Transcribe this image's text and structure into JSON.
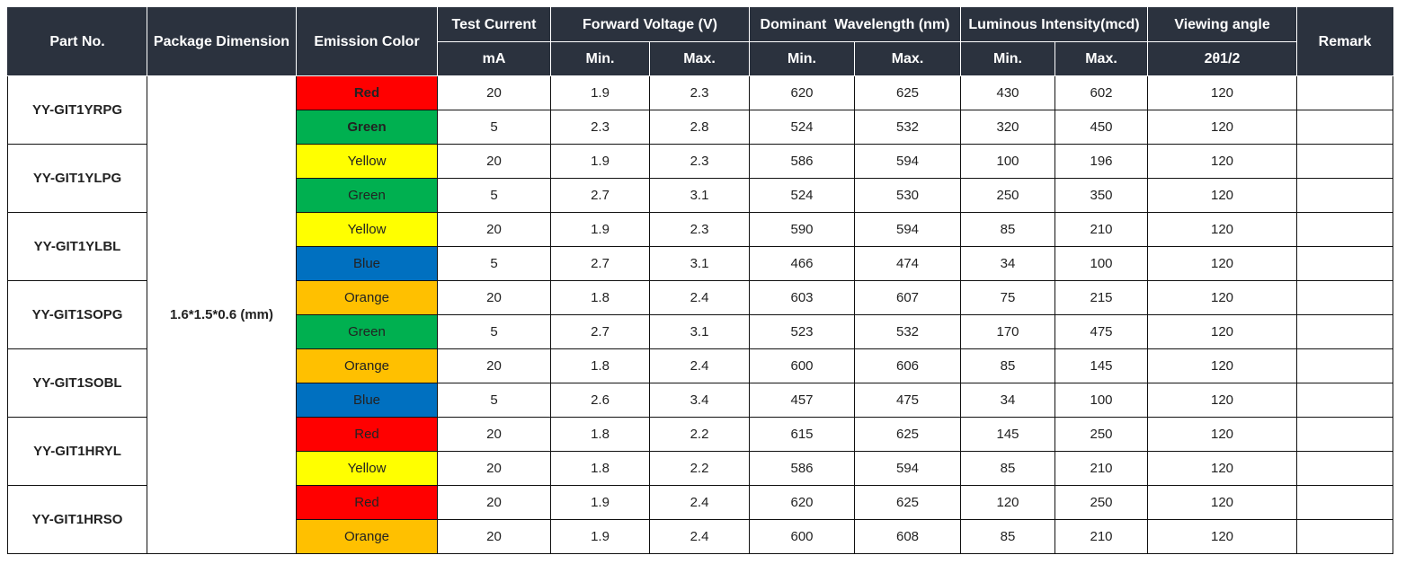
{
  "headers": {
    "part_no": "Part No.",
    "package_dimension": "Package Dimension",
    "emission_color": "Emission Color",
    "test_current": "Test Current",
    "test_current_unit": "mA",
    "forward_voltage": "Forward Voltage (V)",
    "dominant_wavelength": "Dominant  Wavelength (nm)",
    "luminous_intensity": "Luminous Intensity(mcd)",
    "viewing_angle": "Viewing angle",
    "viewing_angle_unit": "2θ1/2",
    "remark": "Remark",
    "min": "Min.",
    "max": "Max."
  },
  "package_dimension": "1.6*1.5*0.6 (mm)",
  "parts": [
    {
      "part_no": "YY-GIT1YRPG",
      "rows": [
        {
          "color": "Red",
          "bg": "#ff0000",
          "bold": true,
          "current": "20",
          "vf_min": "1.9",
          "vf_max": "2.3",
          "wl_min": "620",
          "wl_max": "625",
          "iv_min": "430",
          "iv_max": "602",
          "angle": "120",
          "remark": ""
        },
        {
          "color": "Green",
          "bg": "#00b050",
          "bold": true,
          "current": "5",
          "vf_min": "2.3",
          "vf_max": "2.8",
          "wl_min": "524",
          "wl_max": "532",
          "iv_min": "320",
          "iv_max": "450",
          "angle": "120",
          "remark": ""
        }
      ]
    },
    {
      "part_no": "YY-GIT1YLPG",
      "rows": [
        {
          "color": "Yellow",
          "bg": "#ffff00",
          "bold": false,
          "current": "20",
          "vf_min": "1.9",
          "vf_max": "2.3",
          "wl_min": "586",
          "wl_max": "594",
          "iv_min": "100",
          "iv_max": "196",
          "angle": "120",
          "remark": ""
        },
        {
          "color": "Green",
          "bg": "#00b050",
          "bold": false,
          "current": "5",
          "vf_min": "2.7",
          "vf_max": "3.1",
          "wl_min": "524",
          "wl_max": "530",
          "iv_min": "250",
          "iv_max": "350",
          "angle": "120",
          "remark": ""
        }
      ]
    },
    {
      "part_no": "YY-GIT1YLBL",
      "rows": [
        {
          "color": "Yellow",
          "bg": "#ffff00",
          "bold": false,
          "current": "20",
          "vf_min": "1.9",
          "vf_max": "2.3",
          "wl_min": "590",
          "wl_max": "594",
          "iv_min": "85",
          "iv_max": "210",
          "angle": "120",
          "remark": ""
        },
        {
          "color": "Blue",
          "bg": "#0070c0",
          "bold": false,
          "current": "5",
          "vf_min": "2.7",
          "vf_max": "3.1",
          "wl_min": "466",
          "wl_max": "474",
          "iv_min": "34",
          "iv_max": "100",
          "angle": "120",
          "remark": ""
        }
      ]
    },
    {
      "part_no": "YY-GIT1SOPG",
      "rows": [
        {
          "color": "Orange",
          "bg": "#ffc000",
          "bold": false,
          "current": "20",
          "vf_min": "1.8",
          "vf_max": "2.4",
          "wl_min": "603",
          "wl_max": "607",
          "iv_min": "75",
          "iv_max": "215",
          "angle": "120",
          "remark": ""
        },
        {
          "color": "Green",
          "bg": "#00b050",
          "bold": false,
          "current": "5",
          "vf_min": "2.7",
          "vf_max": "3.1",
          "wl_min": "523",
          "wl_max": "532",
          "iv_min": "170",
          "iv_max": "475",
          "angle": "120",
          "remark": ""
        }
      ]
    },
    {
      "part_no": "YY-GIT1SOBL",
      "rows": [
        {
          "color": "Orange",
          "bg": "#ffc000",
          "bold": false,
          "current": "20",
          "vf_min": "1.8",
          "vf_max": "2.4",
          "wl_min": "600",
          "wl_max": "606",
          "iv_min": "85",
          "iv_max": "145",
          "angle": "120",
          "remark": ""
        },
        {
          "color": "Blue",
          "bg": "#0070c0",
          "bold": false,
          "current": "5",
          "vf_min": "2.6",
          "vf_max": "3.4",
          "wl_min": "457",
          "wl_max": "475",
          "iv_min": "34",
          "iv_max": "100",
          "angle": "120",
          "remark": ""
        }
      ]
    },
    {
      "part_no": "YY-GIT1HRYL",
      "rows": [
        {
          "color": "Red",
          "bg": "#ff0000",
          "bold": false,
          "current": "20",
          "vf_min": "1.8",
          "vf_max": "2.2",
          "wl_min": "615",
          "wl_max": "625",
          "iv_min": "145",
          "iv_max": "250",
          "angle": "120",
          "remark": ""
        },
        {
          "color": "Yellow",
          "bg": "#ffff00",
          "bold": false,
          "current": "20",
          "vf_min": "1.8",
          "vf_max": "2.2",
          "wl_min": "586",
          "wl_max": "594",
          "iv_min": "85",
          "iv_max": "210",
          "angle": "120",
          "remark": ""
        }
      ]
    },
    {
      "part_no": "YY-GIT1HRSO",
      "rows": [
        {
          "color": "Red",
          "bg": "#ff0000",
          "bold": false,
          "current": "20",
          "vf_min": "1.9",
          "vf_max": "2.4",
          "wl_min": "620",
          "wl_max": "625",
          "iv_min": "120",
          "iv_max": "250",
          "angle": "120",
          "remark": ""
        },
        {
          "color": "Orange",
          "bg": "#ffc000",
          "bold": false,
          "current": "20",
          "vf_min": "1.9",
          "vf_max": "2.4",
          "wl_min": "600",
          "wl_max": "608",
          "iv_min": "85",
          "iv_max": "210",
          "angle": "120",
          "remark": ""
        }
      ]
    }
  ]
}
